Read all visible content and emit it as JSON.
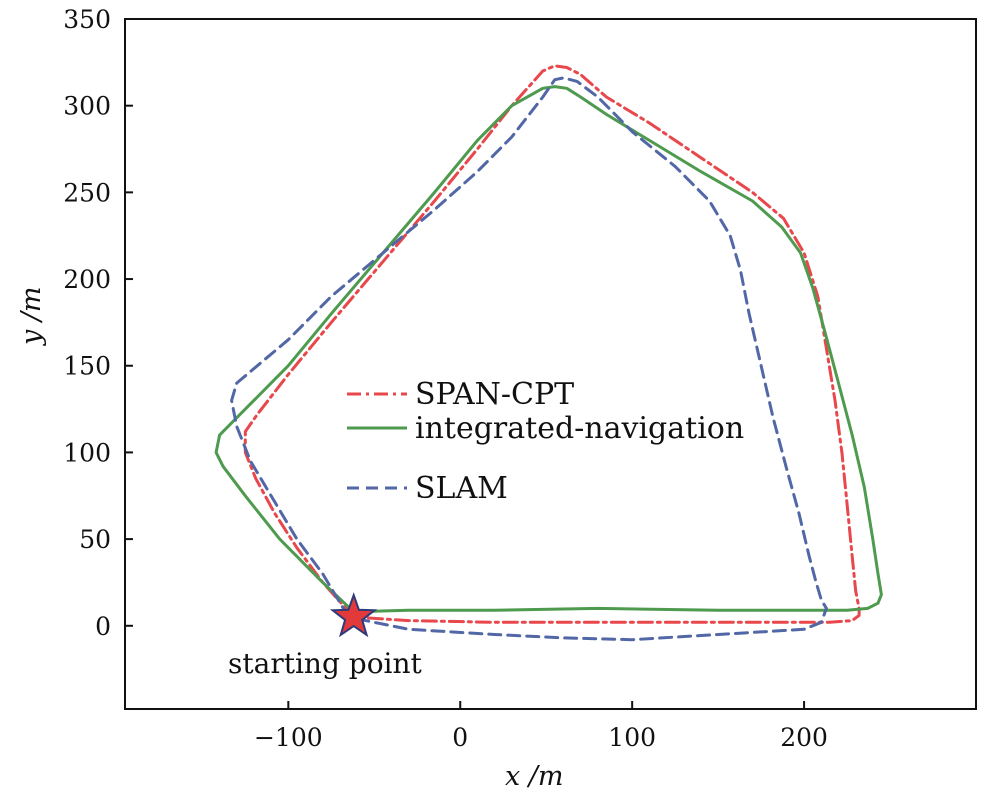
{
  "chart_data": {
    "type": "line",
    "title": "",
    "xlabel": "x /m",
    "ylabel": "y /m",
    "xlim": [
      -195,
      300
    ],
    "ylim": [
      -48,
      350
    ],
    "xticks": [
      -100,
      0,
      100,
      200
    ],
    "yticks": [
      0,
      50,
      100,
      150,
      200,
      250,
      300,
      350
    ],
    "xtick_labels": [
      "−100",
      "0",
      "100",
      "200"
    ],
    "ytick_labels": [
      "0",
      "50",
      "100",
      "150",
      "200",
      "250",
      "300",
      "350"
    ],
    "grid": false,
    "legend": "center",
    "series": [
      {
        "name": "SPAN-CPT",
        "color": "#e8474b",
        "style": "dashdot",
        "x": [
          -62,
          -80,
          -95,
          -108,
          -119,
          -125,
          -125,
          -118,
          -100,
          -75,
          -45,
          -15,
          10,
          30,
          48,
          55,
          62,
          70,
          85,
          110,
          140,
          170,
          188,
          200,
          208,
          213,
          218,
          222,
          225,
          228,
          230,
          232,
          232,
          228,
          215,
          150,
          80,
          20,
          -30,
          -62
        ],
        "y": [
          5,
          25,
          45,
          65,
          85,
          100,
          112,
          122,
          145,
          175,
          210,
          245,
          275,
          300,
          320,
          323,
          322,
          318,
          305,
          290,
          270,
          250,
          235,
          215,
          190,
          160,
          130,
          100,
          70,
          40,
          20,
          10,
          6,
          3,
          2,
          2,
          2,
          2,
          3,
          5
        ]
      },
      {
        "name": "integrated-navigation",
        "color": "#4e9a4e",
        "style": "solid",
        "x": [
          -62,
          -80,
          -105,
          -125,
          -138,
          -142,
          -140,
          -125,
          -100,
          -75,
          -45,
          -15,
          10,
          30,
          48,
          55,
          62,
          70,
          85,
          110,
          140,
          170,
          187,
          198,
          205,
          212,
          220,
          228,
          235,
          240,
          243,
          245,
          243,
          237,
          225,
          150,
          80,
          20,
          -30,
          -62
        ],
        "y": [
          8,
          25,
          50,
          75,
          92,
          100,
          110,
          125,
          150,
          180,
          215,
          250,
          280,
          300,
          310,
          311,
          310,
          305,
          295,
          280,
          262,
          245,
          230,
          215,
          195,
          170,
          140,
          110,
          80,
          50,
          30,
          18,
          13,
          10,
          9,
          9,
          10,
          9,
          9,
          8
        ]
      },
      {
        "name": "SLAM",
        "color": "#5267a6",
        "style": "dashed",
        "x": [
          -65,
          -80,
          -95,
          -110,
          -122,
          -130,
          -133,
          -130,
          -118,
          -100,
          -75,
          -45,
          -15,
          10,
          30,
          48,
          55,
          60,
          68,
          80,
          100,
          125,
          145,
          157,
          163,
          168,
          175,
          182,
          190,
          197,
          203,
          207,
          210,
          213,
          210,
          200,
          150,
          100,
          60,
          20,
          -30,
          -65
        ],
        "y": [
          5,
          30,
          50,
          75,
          95,
          115,
          130,
          140,
          150,
          165,
          190,
          215,
          240,
          262,
          282,
          305,
          315,
          316,
          314,
          305,
          285,
          265,
          245,
          225,
          205,
          180,
          150,
          120,
          90,
          65,
          40,
          25,
          15,
          10,
          2,
          -2,
          -5,
          -8,
          -7,
          -5,
          -2,
          5
        ]
      }
    ],
    "annotations": [
      {
        "text": "starting point",
        "x": -62,
        "y": 5
      }
    ]
  }
}
